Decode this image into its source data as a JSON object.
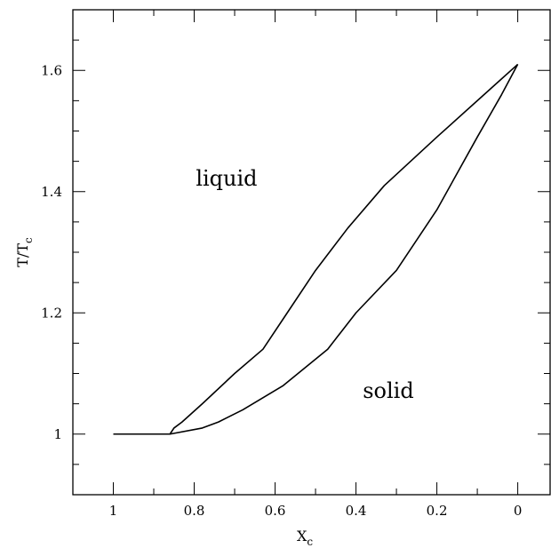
{
  "chart_data": {
    "type": "line",
    "xlabel": "X",
    "xlabel_sub": "c",
    "ylabel": "T/T",
    "ylabel_sub": "c",
    "xlim": [
      1.1,
      -0.08
    ],
    "ylim": [
      0.9,
      1.7
    ],
    "x_ticks": [
      1,
      0.8,
      0.6,
      0.4,
      0.2,
      0
    ],
    "x_tick_labels": [
      "1",
      "0.8",
      "0.6",
      "0.4",
      "0.2",
      "0"
    ],
    "y_ticks": [
      1,
      1.2,
      1.4,
      1.6
    ],
    "y_tick_labels": [
      "1",
      "1.2",
      "1.4",
      "1.6"
    ],
    "x_minor_step": 0.1,
    "y_minor_step": 0.05,
    "grid": false,
    "series": [
      {
        "x": [
          1.0,
          0.86,
          0.85,
          0.83,
          0.78,
          0.7,
          0.63,
          0.57,
          0.5,
          0.42,
          0.33,
          0.2,
          0.1,
          0.05,
          0.0
        ],
        "y": [
          1.0,
          1.0,
          1.01,
          1.02,
          1.05,
          1.1,
          1.14,
          1.2,
          1.27,
          1.34,
          1.41,
          1.49,
          1.55,
          1.58,
          1.61
        ]
      },
      {
        "x": [
          0.86,
          0.78,
          0.74,
          0.68,
          0.58,
          0.47,
          0.4,
          0.3,
          0.2,
          0.1,
          0.04,
          0.0
        ],
        "y": [
          1.0,
          1.01,
          1.02,
          1.04,
          1.08,
          1.14,
          1.2,
          1.27,
          1.37,
          1.49,
          1.56,
          1.61
        ]
      }
    ],
    "annotations": [
      {
        "text": "liquid",
        "x": 0.72,
        "y": 1.41
      },
      {
        "text": "solid",
        "x": 0.32,
        "y": 1.06
      }
    ]
  }
}
